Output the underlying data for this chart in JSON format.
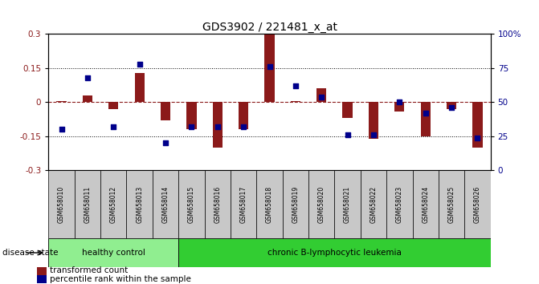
{
  "title": "GDS3902 / 221481_x_at",
  "samples": [
    "GSM658010",
    "GSM658011",
    "GSM658012",
    "GSM658013",
    "GSM658014",
    "GSM658015",
    "GSM658016",
    "GSM658017",
    "GSM658018",
    "GSM658019",
    "GSM658020",
    "GSM658021",
    "GSM658022",
    "GSM658023",
    "GSM658024",
    "GSM658025",
    "GSM658026"
  ],
  "red_values": [
    0.005,
    0.03,
    -0.03,
    0.13,
    -0.08,
    -0.12,
    -0.2,
    -0.12,
    0.3,
    0.005,
    0.06,
    -0.07,
    -0.16,
    -0.04,
    -0.15,
    -0.03,
    -0.2
  ],
  "blue_values_pct": [
    30,
    68,
    32,
    78,
    20,
    32,
    32,
    32,
    76,
    62,
    54,
    26,
    26,
    50,
    42,
    46,
    24
  ],
  "healthy_control_count": 5,
  "ylim_left": [
    -0.3,
    0.3
  ],
  "yticks_left": [
    -0.3,
    -0.15,
    0.0,
    0.15,
    0.3
  ],
  "ytick_labels_left": [
    "-0.3",
    "-0.15",
    "0",
    "0.15",
    "0.3"
  ],
  "yticks_right": [
    0,
    25,
    50,
    75,
    100
  ],
  "ytick_labels_right": [
    "0",
    "25",
    "50",
    "75",
    "100%"
  ],
  "bar_color": "#8B1A1A",
  "dot_color": "#00008B",
  "healthy_bg": "#90EE90",
  "leukemia_bg": "#32CD32",
  "sample_bg": "#C8C8C8",
  "disease_state_label": "disease state",
  "healthy_label": "healthy control",
  "leukemia_label": "chronic B-lymphocytic leukemia",
  "legend_red": "transformed count",
  "legend_blue": "percentile rank within the sample"
}
